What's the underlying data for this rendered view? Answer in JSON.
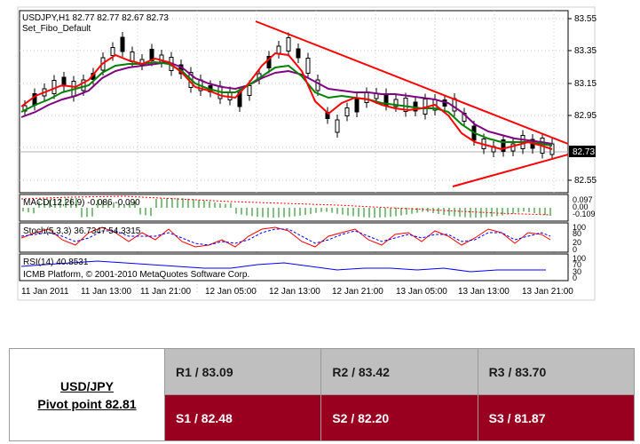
{
  "chart": {
    "header_line1": "USDJPY,H1  82.77 82.77 82.67 82.73",
    "header_line2": "Set_Fibo_Default",
    "price_axis_labels": [
      "83.55",
      "83.35",
      "83.15",
      "82.95",
      "82.55"
    ],
    "current_price_label": "82.73",
    "macd_label": "MACD(12,26,9) -0.086 -0.090",
    "macd_axis_labels": [
      "0.097",
      "0.00",
      "-0.109"
    ],
    "stoch_label": "Stoch(5,3,3) 36.7347 54.3315",
    "stoch_axis_labels": [
      "100",
      "80",
      "20",
      "0"
    ],
    "rsi_label": "RSI(14) 40.8531",
    "rsi_axis_labels": [
      "100",
      "70",
      "30",
      "0"
    ],
    "copyright": "ICMB Platform, © 2001-2010 MetaQuotes Software Corp.",
    "time_labels": [
      "11 Jan 2011",
      "11 Jan 13:00",
      "11 Jan 21:00",
      "12 Jan 05:00",
      "12 Jan 13:00",
      "12 Jan 21:00",
      "13 Jan 05:00",
      "13 Jan 13:00",
      "13 Jan 21:00"
    ],
    "colors": {
      "trendline": "#ff0000",
      "ma_fast": "#ff0000",
      "ma_mid": "#008000",
      "ma_slow": "#800080",
      "macd_hist": "#008000",
      "stoch_main": "#ff0000",
      "stoch_signal": "#0000ff",
      "rsi": "#0000ff"
    }
  },
  "pivot": {
    "pair": "USD/JPY",
    "pivot_point": "Pivot point 82.81",
    "resistances": [
      "R1 / 83.09",
      "R2 / 83.42",
      "R3 / 83.70"
    ],
    "supports": [
      "S1 / 82.48",
      "S2 / 82.20",
      "S3 / 81.87"
    ]
  }
}
